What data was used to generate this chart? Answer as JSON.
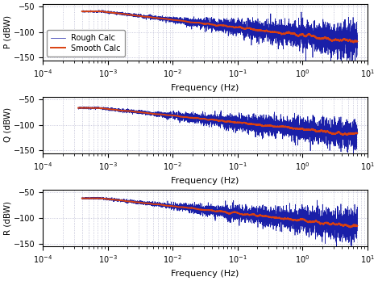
{
  "subplots": [
    {
      "ylabel": "P (dBW)",
      "start_freq": 0.0008,
      "flat_level": -60,
      "rolloff_slope": 1.5,
      "noise_scale_base": 2.0,
      "noise_scale_high": 18.0,
      "noise_transition_freq": 0.008
    },
    {
      "ylabel": "Q (dBW)",
      "start_freq": 0.0007,
      "flat_level": -67,
      "rolloff_slope": 1.3,
      "noise_scale_base": 2.0,
      "noise_scale_high": 15.0,
      "noise_transition_freq": 0.005
    },
    {
      "ylabel": "R (dBW)",
      "start_freq": 0.0008,
      "flat_level": -62,
      "rolloff_slope": 1.4,
      "noise_scale_base": 2.0,
      "noise_scale_high": 16.0,
      "noise_transition_freq": 0.007
    }
  ],
  "xlabel": "Frequency (Hz)",
  "ylim": [
    -155,
    -45
  ],
  "yticks": [
    -150,
    -100,
    -50
  ],
  "xlim": [
    0.0001,
    10
  ],
  "rough_color": "#1a1fa8",
  "smooth_color": "#d94010",
  "legend_labels": [
    "Rough Calc",
    "Smooth Calc"
  ],
  "background_color": "#ffffff",
  "grid_color": "#b0b0cc",
  "rough_lw": 0.5,
  "smooth_lw": 1.4,
  "n_points": 6000,
  "smooth_window": 80
}
